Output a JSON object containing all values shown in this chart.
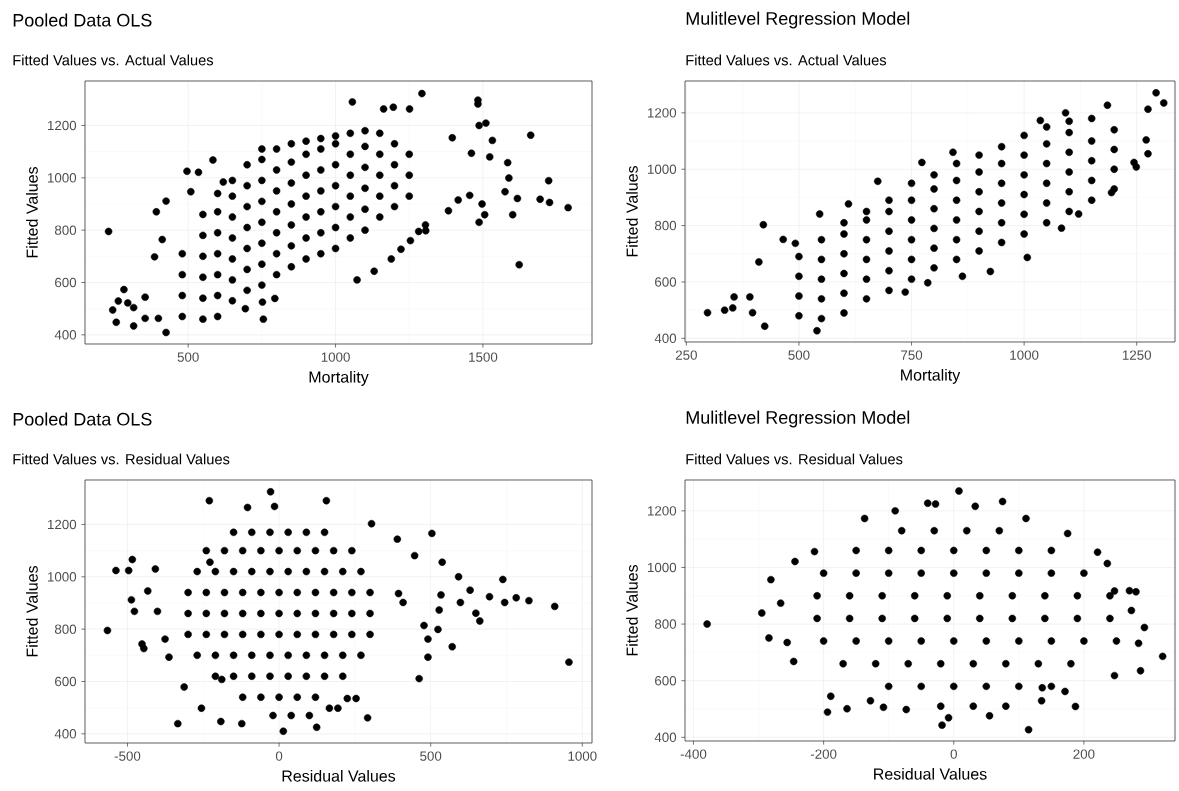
{
  "chart_data": [
    {
      "type": "scatter",
      "title": "Pooled Data OLS",
      "subtitle": "Fitted Values vs. Actual Values",
      "xlabel": "Mortality",
      "ylabel": "Fitted Values",
      "color": "#000000",
      "marker": "circle",
      "grid": true,
      "xlim": [
        150,
        1870
      ],
      "ylim": [
        365,
        1370
      ],
      "xticks": [
        500,
        1000,
        1500
      ],
      "yticks": [
        400,
        600,
        800,
        1000,
        1200
      ],
      "x": [
        230,
        244,
        256,
        263,
        282,
        295,
        315,
        315,
        354,
        354,
        399,
        425,
        392,
        425,
        412,
        386,
        496,
        535,
        584,
        619,
        509,
        755,
        752,
        794,
        694,
        1073,
        1131,
        1282,
        1305,
        1254,
        1293,
        1057,
        1163,
        1251,
        1196,
        1483,
        1483,
        1487,
        1510,
        1532,
        1523,
        1584,
        1588,
        1575,
        1617,
        1662,
        1723,
        1694,
        1726,
        1789,
        1623,
        1601,
        1497,
        1487,
        1506,
        1455,
        1416,
        1396,
        1461,
        1383,
        1306,
        1189,
        1222,
        480,
        480,
        480,
        480,
        550,
        550,
        550,
        550,
        550,
        550,
        600,
        600,
        600,
        600,
        600,
        600,
        600,
        650,
        650,
        650,
        650,
        650,
        650,
        650,
        700,
        700,
        700,
        700,
        700,
        700,
        700,
        750,
        750,
        750,
        750,
        750,
        750,
        750,
        750,
        800,
        800,
        800,
        800,
        800,
        800,
        800,
        850,
        850,
        850,
        850,
        850,
        850,
        850,
        900,
        900,
        900,
        900,
        900,
        900,
        900,
        950,
        950,
        950,
        950,
        950,
        950,
        950,
        1000,
        1000,
        1000,
        1000,
        1000,
        1000,
        1000,
        1050,
        1050,
        1050,
        1050,
        1050,
        1050,
        1100,
        1100,
        1100,
        1100,
        1100,
        1100,
        1150,
        1150,
        1150,
        1150,
        1150,
        1200,
        1200,
        1200,
        1200,
        1250,
        1250,
        1250
      ],
      "values": [
        795,
        495,
        448,
        529,
        573,
        522,
        504,
        434,
        544,
        463,
        463,
        409,
        870,
        911,
        764,
        698,
        1025,
        1021,
        1068,
        984,
        947,
        460,
        525,
        539,
        500,
        610,
        643,
        795,
        820,
        760,
        1322,
        1290,
        1263,
        1263,
        1270,
        1297,
        1282,
        1200,
        1209,
        1143,
        1080,
        1058,
        999,
        947,
        921,
        1163,
        989,
        918,
        906,
        886,
        668,
        859,
        900,
        830,
        859,
        933,
        915,
        1153,
        1094,
        874,
        798,
        690,
        727,
        470,
        550,
        630,
        710,
        460,
        540,
        620,
        700,
        780,
        860,
        470,
        550,
        630,
        710,
        790,
        870,
        940,
        530,
        610,
        690,
        770,
        850,
        930,
        990,
        570,
        650,
        730,
        810,
        890,
        970,
        1050,
        590,
        670,
        750,
        830,
        910,
        990,
        1070,
        1110,
        630,
        710,
        790,
        870,
        950,
        1030,
        1110,
        660,
        740,
        820,
        900,
        980,
        1060,
        1130,
        690,
        770,
        850,
        930,
        1010,
        1090,
        1140,
        710,
        790,
        870,
        950,
        1030,
        1110,
        1150,
        730,
        810,
        890,
        970,
        1050,
        1130,
        1160,
        770,
        850,
        930,
        1010,
        1090,
        1170,
        800,
        880,
        960,
        1040,
        1120,
        1180,
        850,
        930,
        1010,
        1090,
        1170,
        890,
        970,
        1050,
        1130,
        930,
        1010,
        1090
      ]
    },
    {
      "type": "scatter",
      "title": "Mulitlevel Regression Model",
      "subtitle": "Fitted Values vs. Actual Values",
      "xlabel": "Mortality",
      "ylabel": "Fitted Values",
      "color": "#000000",
      "marker": "circle",
      "grid": true,
      "xlim": [
        247,
        1335
      ],
      "ylim": [
        387,
        1313
      ],
      "xticks": [
        250,
        500,
        750,
        1000,
        1250
      ],
      "yticks": [
        400,
        600,
        800,
        1000,
        1200
      ],
      "x": [
        297,
        335,
        353,
        356,
        391,
        397,
        424,
        421,
        411,
        465,
        492,
        546,
        610,
        675,
        736,
        786,
        863,
        925,
        1007,
        1121,
        1083,
        1293,
        1310,
        1275,
        1275,
        1271,
        1249,
        1185,
        1036,
        1092,
        1194,
        1244,
        842,
        773,
        540,
        500,
        500,
        500,
        500,
        550,
        550,
        550,
        550,
        550,
        600,
        600,
        600,
        600,
        600,
        600,
        650,
        650,
        650,
        650,
        650,
        650,
        700,
        700,
        700,
        700,
        700,
        700,
        750,
        750,
        750,
        750,
        750,
        750,
        800,
        800,
        800,
        800,
        800,
        800,
        850,
        850,
        850,
        850,
        850,
        850,
        900,
        900,
        900,
        900,
        900,
        900,
        950,
        950,
        950,
        950,
        950,
        950,
        1000,
        1000,
        1000,
        1000,
        1000,
        1000,
        1050,
        1050,
        1050,
        1050,
        1050,
        1050,
        1100,
        1100,
        1100,
        1100,
        1100,
        1100,
        1150,
        1150,
        1150,
        1150,
        1150,
        1200,
        1200,
        1200,
        1200
      ],
      "values": [
        491,
        500,
        508,
        547,
        547,
        491,
        443,
        803,
        671,
        751,
        737,
        841,
        877,
        957,
        564,
        597,
        620,
        637,
        687,
        841,
        791,
        1271,
        1235,
        1213,
        1055,
        1104,
        1008,
        1227,
        1173,
        1200,
        917,
        1024,
        1060,
        1024,
        427,
        480,
        550,
        620,
        690,
        470,
        540,
        610,
        680,
        750,
        490,
        560,
        630,
        700,
        770,
        810,
        540,
        610,
        680,
        750,
        820,
        850,
        570,
        640,
        710,
        780,
        850,
        890,
        610,
        680,
        750,
        820,
        890,
        950,
        650,
        720,
        790,
        860,
        930,
        980,
        680,
        750,
        820,
        890,
        960,
        1020,
        710,
        780,
        850,
        920,
        990,
        1050,
        740,
        810,
        880,
        950,
        1020,
        1080,
        770,
        840,
        910,
        980,
        1050,
        1120,
        810,
        880,
        950,
        1020,
        1090,
        1150,
        850,
        920,
        990,
        1060,
        1130,
        1170,
        890,
        960,
        1030,
        1100,
        1180,
        930,
        1000,
        1070,
        1140
      ]
    },
    {
      "type": "scatter",
      "title": "Pooled Data OLS",
      "subtitle": "Fitted Values vs. Residual Values",
      "xlabel": "Residual Values",
      "ylabel": "Fitted Values",
      "color": "#000000",
      "marker": "circle",
      "grid": true,
      "xlim": [
        -640,
        1032
      ],
      "ylim": [
        365,
        1370
      ],
      "xticks": [
        -500,
        0,
        500,
        1000
      ],
      "yticks": [
        400,
        600,
        800,
        1000,
        1200
      ],
      "x": [
        -566,
        -538,
        -496,
        -484,
        -487,
        -477,
        -452,
        -446,
        -433,
        -408,
        -401,
        -376,
        -363,
        -334,
        -313,
        -256,
        -228,
        -230,
        -189,
        -192,
        -123,
        -28,
        -15,
        -104,
        14,
        124,
        156,
        166,
        194,
        225,
        254,
        292,
        305,
        390,
        447,
        504,
        538,
        534,
        528,
        524,
        491,
        491,
        462,
        592,
        598,
        630,
        662,
        649,
        694,
        738,
        744,
        782,
        824,
        909,
        956,
        571,
        478,
        409,
        394,
        -150,
        -90,
        -30,
        30,
        90,
        150,
        -240,
        -180,
        -120,
        -60,
        0,
        60,
        120,
        180,
        240,
        -270,
        -210,
        -150,
        -90,
        -30,
        30,
        90,
        150,
        210,
        270,
        -300,
        -240,
        -180,
        -120,
        -60,
        0,
        60,
        120,
        180,
        240,
        300,
        -300,
        -240,
        -180,
        -120,
        -60,
        0,
        60,
        120,
        180,
        240,
        300,
        -300,
        -240,
        -180,
        -120,
        -60,
        0,
        60,
        120,
        180,
        240,
        300,
        -270,
        -210,
        -150,
        -90,
        -30,
        30,
        90,
        150,
        210,
        270,
        -210,
        -150,
        -90,
        -30,
        30,
        90,
        150,
        210,
        -120,
        -60,
        0,
        60,
        120,
        -20,
        40,
        100
      ],
      "values": [
        795,
        1024,
        1024,
        1066,
        912,
        868,
        743,
        726,
        946,
        1030,
        868,
        762,
        693,
        439,
        579,
        498,
        1056,
        1291,
        608,
        447,
        439,
        1325,
        1269,
        1265,
        410,
        425,
        1291,
        498,
        498,
        535,
        535,
        461,
        1203,
        1144,
        1081,
        1166,
        1056,
        931,
        873,
        799,
        762,
        693,
        611,
        1000,
        902,
        949,
        831,
        861,
        924,
        990,
        902,
        920,
        909,
        887,
        674,
        733,
        814,
        902,
        936,
        1170,
        1170,
        1170,
        1170,
        1170,
        1170,
        1100,
        1100,
        1100,
        1100,
        1100,
        1100,
        1100,
        1100,
        1100,
        1020,
        1020,
        1020,
        1020,
        1020,
        1020,
        1020,
        1020,
        1020,
        1020,
        940,
        940,
        940,
        940,
        940,
        940,
        940,
        940,
        940,
        940,
        940,
        860,
        860,
        860,
        860,
        860,
        860,
        860,
        860,
        860,
        860,
        860,
        780,
        780,
        780,
        780,
        780,
        780,
        780,
        780,
        780,
        780,
        780,
        700,
        700,
        700,
        700,
        700,
        700,
        700,
        700,
        700,
        700,
        620,
        620,
        620,
        620,
        620,
        620,
        620,
        620,
        540,
        540,
        540,
        540,
        540,
        470,
        470,
        470
      ]
    },
    {
      "type": "scatter",
      "title": "Mulitlevel Regression Model",
      "subtitle": "Fitted Values vs. Residual Values",
      "xlabel": "Residual Values",
      "ylabel": "Fitted Values",
      "color": "#000000",
      "marker": "circle",
      "grid": true,
      "xlim": [
        -413,
        340
      ],
      "ylim": [
        387,
        1309
      ],
      "xticks": [
        -400,
        -200,
        0,
        200
      ],
      "yticks": [
        400,
        600,
        800,
        1000,
        1200
      ],
      "x": [
        -379,
        -295,
        -284,
        -281,
        -266,
        -256,
        -246,
        -244,
        -214,
        -194,
        -189,
        -164,
        -128,
        -108,
        -73,
        -18,
        8,
        75,
        115,
        171,
        136,
        221,
        247,
        247,
        270,
        280,
        293,
        287,
        321,
        273,
        284,
        -40,
        -28,
        -137,
        -90,
        33,
        111,
        175,
        236,
        187,
        135,
        55,
        -8,
        -80,
        -30,
        20,
        70,
        -150,
        -100,
        -50,
        0,
        50,
        100,
        150,
        -200,
        -150,
        -100,
        -50,
        0,
        50,
        100,
        150,
        200,
        -210,
        -160,
        -110,
        -60,
        -10,
        40,
        90,
        140,
        190,
        240,
        -210,
        -160,
        -110,
        -60,
        -10,
        40,
        90,
        140,
        190,
        240,
        -200,
        -150,
        -100,
        -50,
        0,
        50,
        100,
        150,
        200,
        250,
        -170,
        -120,
        -70,
        -20,
        30,
        80,
        130,
        180,
        -100,
        -50,
        0,
        50,
        100,
        150,
        -20,
        30,
        80
      ],
      "values": [
        800,
        839,
        751,
        957,
        874,
        735,
        668,
        1021,
        1056,
        489,
        545,
        501,
        529,
        506,
        498,
        443,
        1270,
        1233,
        427,
        562,
        575,
        1054,
        917,
        618,
        918,
        914,
        788,
        635,
        686,
        848,
        732,
        1227,
        1224,
        1173,
        1200,
        1216,
        1173,
        1120,
        1014,
        509,
        529,
        476,
        469,
        1130,
        1130,
        1130,
        1130,
        1060,
        1060,
        1060,
        1060,
        1060,
        1060,
        1060,
        980,
        980,
        980,
        980,
        980,
        980,
        980,
        980,
        980,
        900,
        900,
        900,
        900,
        900,
        900,
        900,
        900,
        900,
        900,
        820,
        820,
        820,
        820,
        820,
        820,
        820,
        820,
        820,
        820,
        740,
        740,
        740,
        740,
        740,
        740,
        740,
        740,
        740,
        740,
        660,
        660,
        660,
        660,
        660,
        660,
        660,
        660,
        580,
        580,
        580,
        580,
        580,
        580,
        510,
        510,
        510
      ]
    }
  ]
}
